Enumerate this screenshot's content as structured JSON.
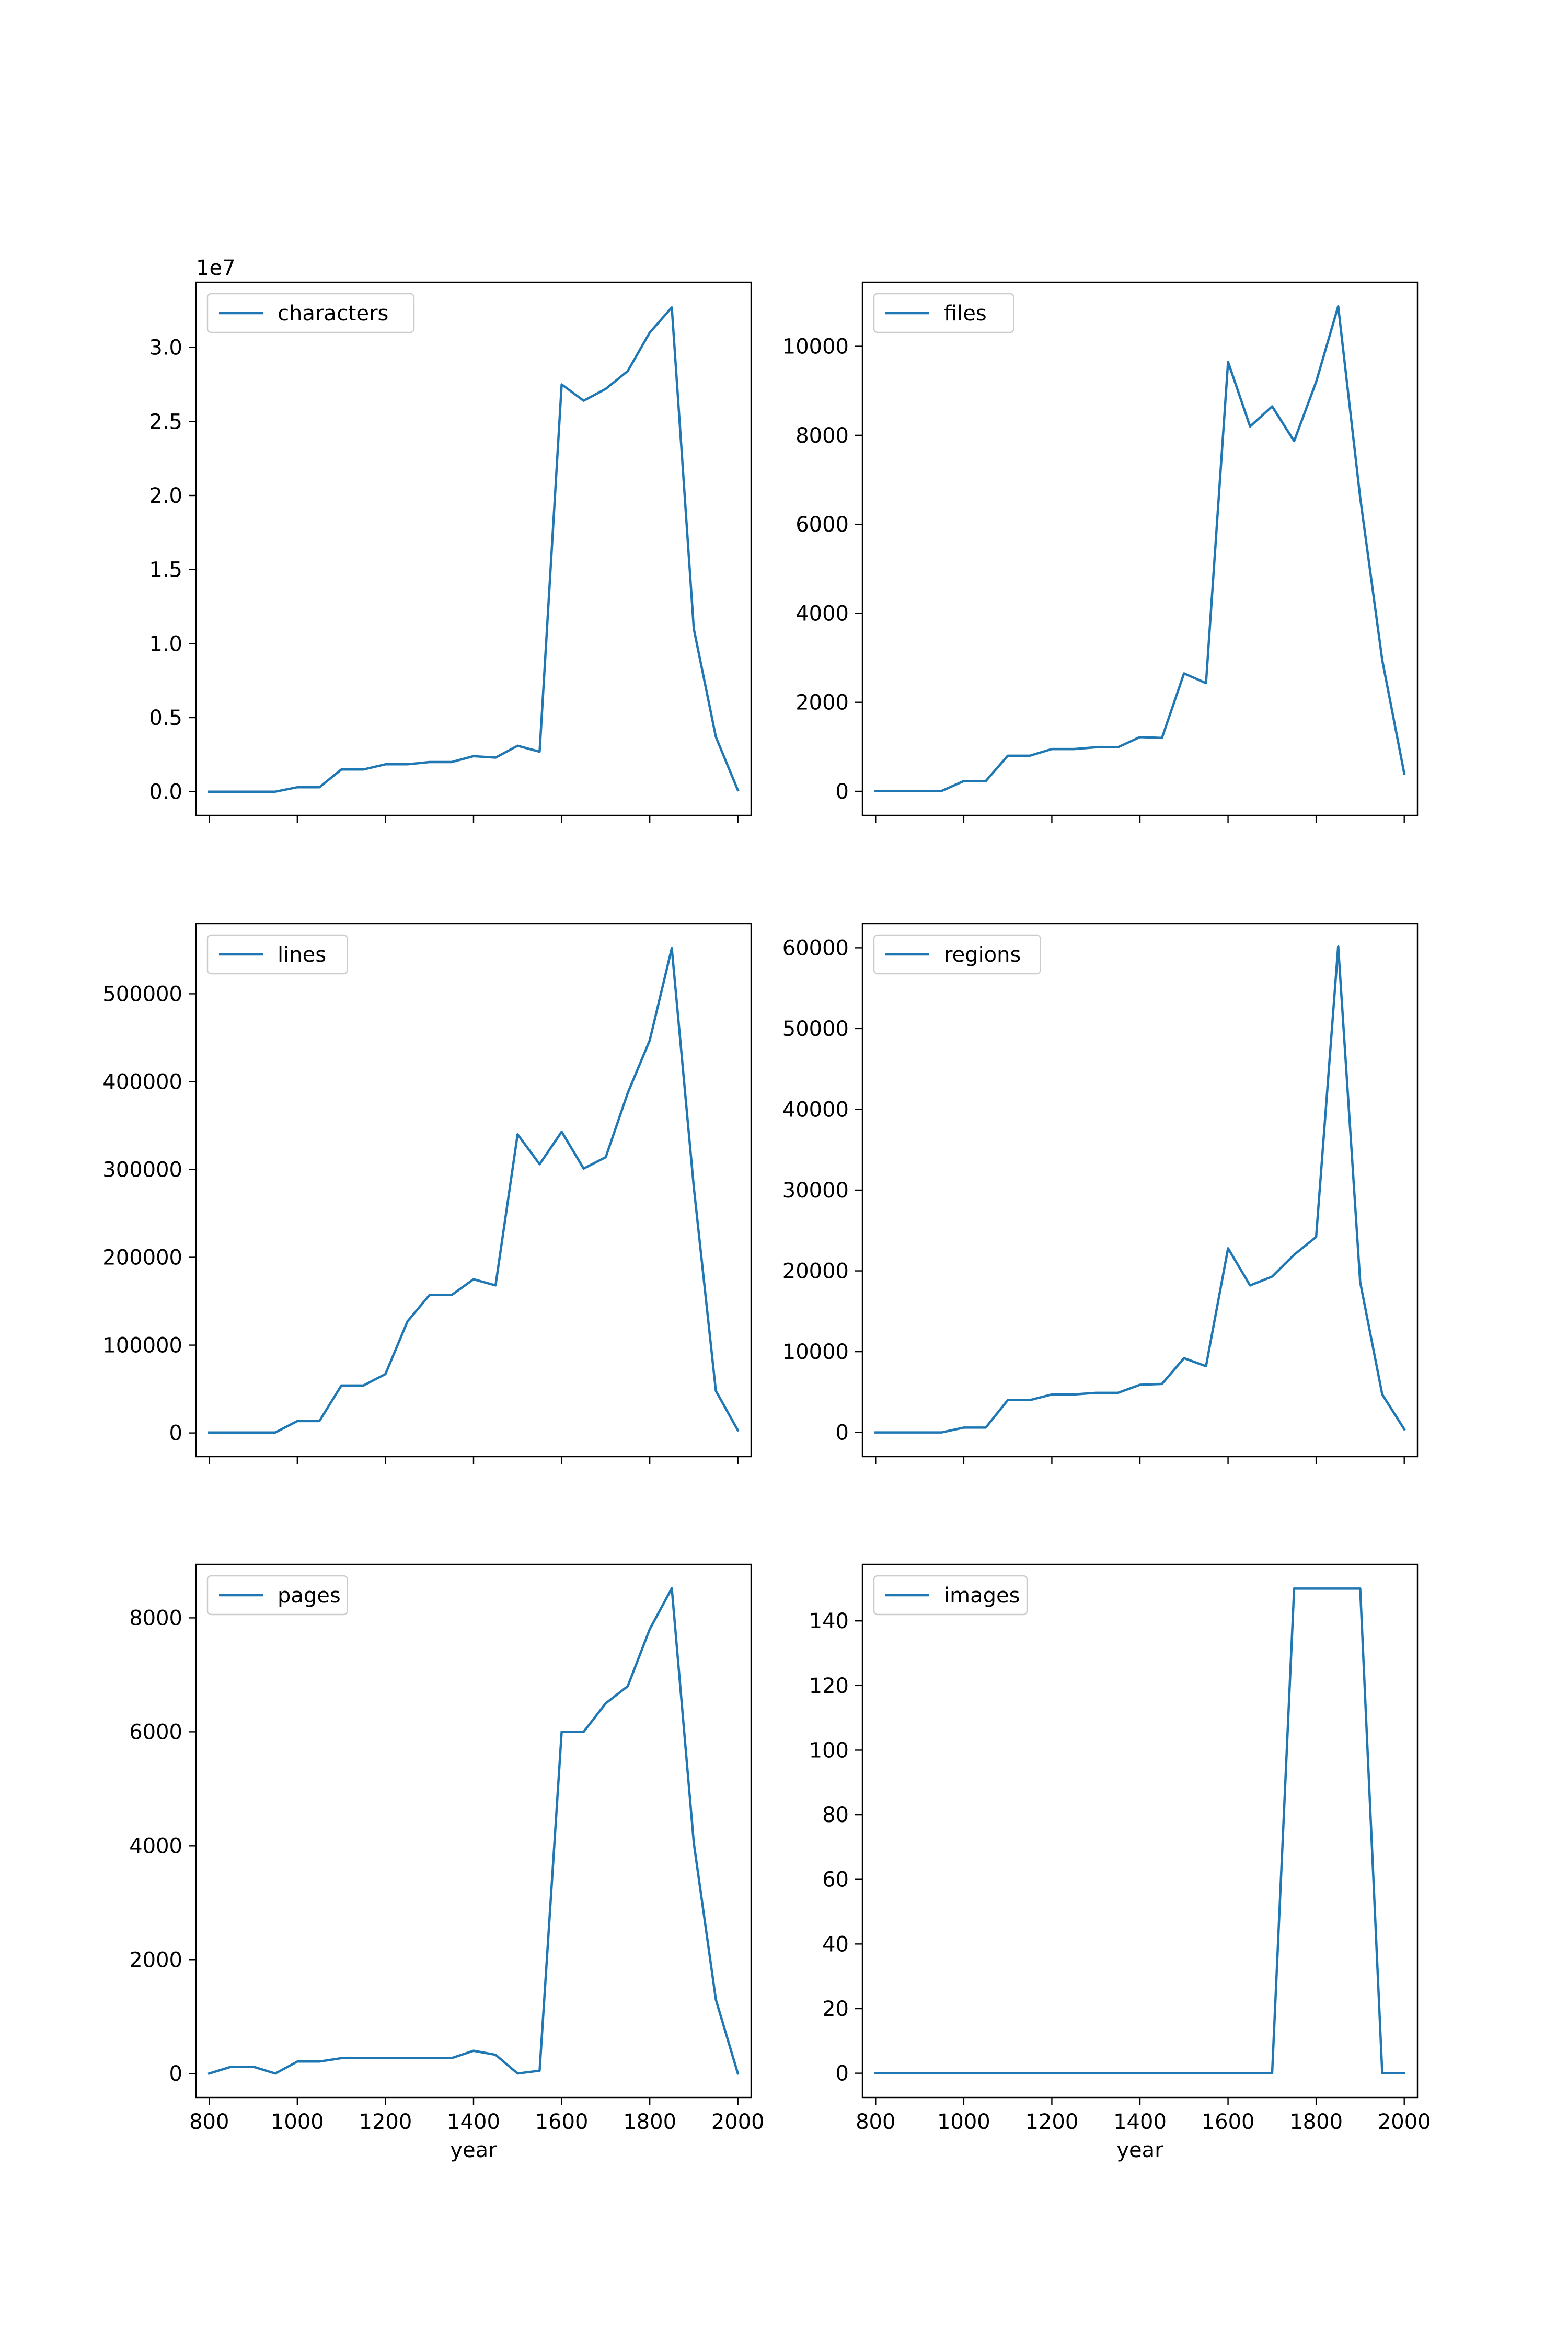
{
  "chart_data": [
    {
      "type": "line",
      "name": "characters",
      "legend": [
        "characters"
      ],
      "offset_text": "1e7",
      "xlabel": "",
      "ylabel": "",
      "xlim": [
        770,
        2030
      ],
      "ylim": [
        -1600000,
        34400000
      ],
      "xticks": [
        800,
        1000,
        1200,
        1400,
        1600,
        1800,
        2000
      ],
      "xtick_labels": [
        "",
        "",
        "",
        "",
        "",
        "",
        ""
      ],
      "yticks": [
        0,
        5000000,
        10000000,
        15000000,
        20000000,
        25000000,
        30000000
      ],
      "ytick_labels": [
        "0.0",
        "0.5",
        "1.0",
        "1.5",
        "2.0",
        "2.5",
        "3.0"
      ],
      "x": [
        800,
        850,
        900,
        950,
        1000,
        1050,
        1100,
        1150,
        1200,
        1250,
        1300,
        1350,
        1400,
        1450,
        1500,
        1550,
        1600,
        1650,
        1700,
        1750,
        1800,
        1850,
        1900,
        1950,
        2000
      ],
      "values": [
        0,
        0,
        0,
        0,
        300000,
        300000,
        1500000,
        1500000,
        1850000,
        1850000,
        2000000,
        2000000,
        2400000,
        2300000,
        3100000,
        2700000,
        27500000,
        26400000,
        27200000,
        28400000,
        31000000,
        32700000,
        11000000,
        3700000,
        100000
      ]
    },
    {
      "type": "line",
      "name": "files",
      "legend": [
        "files"
      ],
      "offset_text": "",
      "xlabel": "",
      "ylabel": "",
      "xlim": [
        770,
        2030
      ],
      "ylim": [
        -540,
        11440
      ],
      "xticks": [
        800,
        1000,
        1200,
        1400,
        1600,
        1800,
        2000
      ],
      "xtick_labels": [
        "",
        "",
        "",
        "",
        "",
        "",
        ""
      ],
      "yticks": [
        0,
        2000,
        4000,
        6000,
        8000,
        10000
      ],
      "ytick_labels": [
        "0",
        "2000",
        "4000",
        "6000",
        "8000",
        "10000"
      ],
      "x": [
        800,
        850,
        900,
        950,
        1000,
        1050,
        1100,
        1150,
        1200,
        1250,
        1300,
        1350,
        1400,
        1450,
        1500,
        1550,
        1600,
        1650,
        1700,
        1750,
        1800,
        1850,
        1900,
        1950,
        2000
      ],
      "values": [
        10,
        10,
        10,
        10,
        230,
        230,
        800,
        800,
        950,
        950,
        990,
        990,
        1220,
        1200,
        2650,
        2430,
        9650,
        8200,
        8650,
        7870,
        9200,
        10900,
        6600,
        2950,
        400
      ]
    },
    {
      "type": "line",
      "name": "lines",
      "legend": [
        "lines"
      ],
      "offset_text": "",
      "xlabel": "",
      "ylabel": "",
      "xlim": [
        770,
        2030
      ],
      "ylim": [
        -27000,
        580000
      ],
      "xticks": [
        800,
        1000,
        1200,
        1400,
        1600,
        1800,
        2000
      ],
      "xtick_labels": [
        "",
        "",
        "",
        "",
        "",
        "",
        ""
      ],
      "yticks": [
        0,
        100000,
        200000,
        300000,
        400000,
        500000
      ],
      "ytick_labels": [
        "0",
        "100000",
        "200000",
        "300000",
        "400000",
        "500000"
      ],
      "x": [
        800,
        850,
        900,
        950,
        1000,
        1050,
        1100,
        1150,
        1200,
        1250,
        1300,
        1350,
        1400,
        1450,
        1500,
        1550,
        1600,
        1650,
        1700,
        1750,
        1800,
        1850,
        1900,
        1950,
        2000
      ],
      "values": [
        500,
        500,
        500,
        500,
        13500,
        13500,
        54000,
        54000,
        67000,
        127000,
        157000,
        157000,
        175000,
        168000,
        340000,
        306000,
        343000,
        301000,
        314000,
        387000,
        447000,
        552000,
        280000,
        48000,
        3000
      ]
    },
    {
      "type": "line",
      "name": "regions",
      "legend": [
        "regions"
      ],
      "offset_text": "",
      "xlabel": "",
      "ylabel": "",
      "xlim": [
        770,
        2030
      ],
      "ylim": [
        -3000,
        63000
      ],
      "xticks": [
        800,
        1000,
        1200,
        1400,
        1600,
        1800,
        2000
      ],
      "xtick_labels": [
        "",
        "",
        "",
        "",
        "",
        "",
        ""
      ],
      "yticks": [
        0,
        10000,
        20000,
        30000,
        40000,
        50000,
        60000
      ],
      "ytick_labels": [
        "0",
        "10000",
        "20000",
        "30000",
        "40000",
        "50000",
        "60000"
      ],
      "x": [
        800,
        850,
        900,
        950,
        1000,
        1050,
        1100,
        1150,
        1200,
        1250,
        1300,
        1350,
        1400,
        1450,
        1500,
        1550,
        1600,
        1650,
        1700,
        1750,
        1800,
        1850,
        1900,
        1950,
        2000
      ],
      "values": [
        0,
        0,
        0,
        0,
        600,
        600,
        4000,
        4000,
        4700,
        4700,
        4900,
        4900,
        5900,
        6000,
        9200,
        8200,
        22800,
        18200,
        19300,
        22000,
        24200,
        60200,
        18600,
        4700,
        400
      ]
    },
    {
      "type": "line",
      "name": "pages",
      "legend": [
        "pages"
      ],
      "offset_text": "",
      "xlabel": "year",
      "ylabel": "",
      "xlim": [
        770,
        2030
      ],
      "ylim": [
        -420,
        8940
      ],
      "xticks": [
        800,
        1000,
        1200,
        1400,
        1600,
        1800,
        2000
      ],
      "xtick_labels": [
        "800",
        "1000",
        "1200",
        "1400",
        "1600",
        "1800",
        "2000"
      ],
      "yticks": [
        0,
        2000,
        4000,
        6000,
        8000
      ],
      "ytick_labels": [
        "0",
        "2000",
        "4000",
        "6000",
        "8000"
      ],
      "x": [
        800,
        850,
        900,
        950,
        1000,
        1050,
        1100,
        1150,
        1200,
        1250,
        1300,
        1350,
        1400,
        1450,
        1500,
        1550,
        1600,
        1650,
        1700,
        1750,
        1800,
        1850,
        1900,
        1950,
        2000
      ],
      "values": [
        0,
        120,
        120,
        0,
        210,
        210,
        270,
        270,
        270,
        270,
        270,
        270,
        400,
        330,
        0,
        50,
        6000,
        6000,
        6500,
        6800,
        7800,
        8520,
        4050,
        1300,
        0
      ]
    },
    {
      "type": "line",
      "name": "images",
      "legend": [
        "images"
      ],
      "offset_text": "",
      "xlabel": "year",
      "ylabel": "",
      "xlim": [
        770,
        2030
      ],
      "ylim": [
        -7.5,
        157.5
      ],
      "xticks": [
        800,
        1000,
        1200,
        1400,
        1600,
        1800,
        2000
      ],
      "xtick_labels": [
        "800",
        "1000",
        "1200",
        "1400",
        "1600",
        "1800",
        "2000"
      ],
      "yticks": [
        0,
        20,
        40,
        60,
        80,
        100,
        120,
        140
      ],
      "ytick_labels": [
        "0",
        "20",
        "40",
        "60",
        "80",
        "100",
        "120",
        "140"
      ],
      "x": [
        800,
        850,
        900,
        950,
        1000,
        1050,
        1100,
        1150,
        1200,
        1250,
        1300,
        1350,
        1400,
        1450,
        1500,
        1550,
        1600,
        1650,
        1700,
        1750,
        1800,
        1850,
        1900,
        1950,
        2000
      ],
      "values": [
        0,
        0,
        0,
        0,
        0,
        0,
        0,
        0,
        0,
        0,
        0,
        0,
        0,
        0,
        0,
        0,
        0,
        0,
        0,
        150,
        150,
        150,
        150,
        0,
        0
      ]
    }
  ],
  "colors": {
    "series": "#1f77b4",
    "axes": "#000000",
    "legend_border": "#cccccc",
    "background": "#ffffff"
  }
}
